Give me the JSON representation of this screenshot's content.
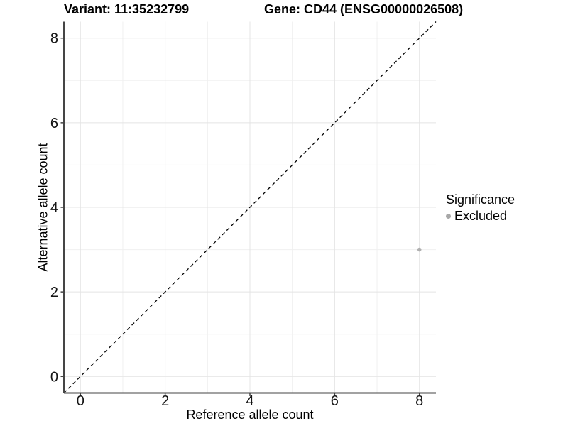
{
  "figure": {
    "title_left": "Variant: 11:35232799",
    "title_right": "Gene: CD44 (ENSG00000026508)"
  },
  "chart_data": {
    "type": "scatter",
    "title": "Variant: 11:35232799  /  Gene: CD44 (ENSG00000026508)",
    "xlabel": "Reference allele count",
    "ylabel": "Alternative allele count",
    "xlim": [
      -0.39,
      8.39
    ],
    "ylim": [
      -0.39,
      8.39
    ],
    "xticks": [
      0,
      2,
      4,
      6,
      8
    ],
    "yticks": [
      0,
      2,
      4,
      6,
      8
    ],
    "minor_xticks": [
      1,
      3,
      5,
      7
    ],
    "minor_yticks": [
      1,
      3,
      5,
      7
    ],
    "grid": true,
    "series": [
      {
        "name": "Excluded",
        "points": [
          {
            "x": 8,
            "y": 3
          }
        ]
      }
    ],
    "reference_line": {
      "type": "identity",
      "from": [
        -0.39,
        -0.39
      ],
      "to": [
        8.39,
        8.39
      ],
      "style": "dashed",
      "color": "#000000"
    },
    "legend": {
      "title": "Significance",
      "position": "right",
      "entries": [
        {
          "label": "Excluded",
          "marker": "circle",
          "color": "#a8a8a8"
        }
      ]
    },
    "colors": {
      "point": "#b0b0b0",
      "axis_line": "#454545",
      "grid_major": "#e4e4e4",
      "grid_minor": "#f0f0f0",
      "tick_text": "#141414"
    }
  }
}
